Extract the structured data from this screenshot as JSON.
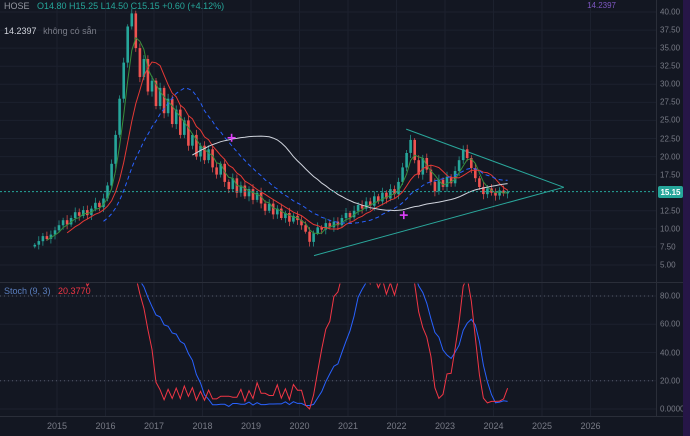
{
  "header": {
    "symbol_text": "HOSE",
    "ohlc": "O14.80  H15.25  L14.50  C15.15  +0.60 (+4.12%)",
    "alert_value": "14.2397",
    "alert_status": "không có sẵn",
    "top_right_label": "14.2397"
  },
  "oscillator_legend": {
    "label": "Stoch (9, 3)",
    "value": "20.3770"
  },
  "colors": {
    "background": "#131722",
    "grid": "#1c212e",
    "up": "#26a69a",
    "down": "#ef5350",
    "axis_text": "#787b86",
    "panel_border": "#2a2e39",
    "strip": "#261647",
    "magenta": "#e040fb",
    "triangle": "#2aa79b",
    "price_line": "#26a69a",
    "osc_guide": "#555b6b"
  },
  "price_axis": {
    "badge": "15.15",
    "labels": [
      {
        "text": "40.00",
        "price": 40.0
      },
      {
        "text": "37.50",
        "price": 37.5
      },
      {
        "text": "35.00",
        "price": 35.0
      },
      {
        "text": "32.50",
        "price": 32.5
      },
      {
        "text": "30.00",
        "price": 30.0
      },
      {
        "text": "27.50",
        "price": 27.5
      },
      {
        "text": "25.00",
        "price": 25.0
      },
      {
        "text": "22.50",
        "price": 22.5
      },
      {
        "text": "20.00",
        "price": 20.0
      },
      {
        "text": "17.50",
        "price": 17.5
      },
      {
        "text": "12.50",
        "price": 12.5
      },
      {
        "text": "10.00",
        "price": 10.0
      },
      {
        "text": "7.50",
        "price": 7.5
      },
      {
        "text": "5.00",
        "price": 5.0
      }
    ]
  },
  "osc_axis": {
    "labels": [
      {
        "text": "80.00",
        "value": 80
      },
      {
        "text": "60.00",
        "value": 60
      },
      {
        "text": "40.00",
        "value": 40
      },
      {
        "text": "20.00",
        "value": 20
      },
      {
        "text": "0.0000",
        "value": 0
      }
    ]
  },
  "time_axis": {
    "labels": [
      {
        "text": "2015",
        "year": 2015
      },
      {
        "text": "2016",
        "year": 2016
      },
      {
        "text": "2017",
        "year": 2017
      },
      {
        "text": "2018",
        "year": 2018
      },
      {
        "text": "2019",
        "year": 2019
      },
      {
        "text": "2020",
        "year": 2020
      },
      {
        "text": "2021",
        "year": 2021
      },
      {
        "text": "2022",
        "year": 2022
      },
      {
        "text": "2023",
        "year": 2023
      },
      {
        "text": "2024",
        "year": 2024
      },
      {
        "text": "2025",
        "year": 2025
      },
      {
        "text": "2026",
        "year": 2026
      }
    ]
  },
  "chart_data": {
    "type": "candlestick",
    "title": "HOSE stock weekly chart with symmetrical triangle and stochastic oscillator",
    "x_start_year": 2014.5,
    "interval_months": 1,
    "main_ylim": [
      5,
      40
    ],
    "last_price": 15.15,
    "closes": [
      7.8,
      8.3,
      9.0,
      8.6,
      9.2,
      9.8,
      10.5,
      11.2,
      10.6,
      11.5,
      12.3,
      11.8,
      12.6,
      11.9,
      12.8,
      13.6,
      13.0,
      14.2,
      16.0,
      19.0,
      23.0,
      28.0,
      33.0,
      38.0,
      39.8,
      35.0,
      31.0,
      33.5,
      29.0,
      30.5,
      27.0,
      29.5,
      26.0,
      28.0,
      24.5,
      26.5,
      23.0,
      25.0,
      21.5,
      23.0,
      20.0,
      21.5,
      19.5,
      21.0,
      18.5,
      17.5,
      19.0,
      16.5,
      15.5,
      17.0,
      15.0,
      16.0,
      14.5,
      15.5,
      14.0,
      15.0,
      13.5,
      12.5,
      13.5,
      12.0,
      12.8,
      11.5,
      12.2,
      11.0,
      11.8,
      11.2,
      10.5,
      9.6,
      8.2,
      9.4,
      10.2,
      9.9,
      10.8,
      10.2,
      11.0,
      10.5,
      11.5,
      12.2,
      11.6,
      12.5,
      13.3,
      12.8,
      13.8,
      13.2,
      14.5,
      13.8,
      15.0,
      14.2,
      15.5,
      14.8,
      16.5,
      18.5,
      20.5,
      22.3,
      19.5,
      17.5,
      19.8,
      18.2,
      16.5,
      15.2,
      16.8,
      15.8,
      17.2,
      16.3,
      18.0,
      19.5,
      21.0,
      19.8,
      18.4,
      17.0,
      15.8,
      14.8,
      15.6,
      15.0,
      14.6,
      15.3,
      14.9,
      15.15
    ],
    "moving_averages": [
      {
        "name": "fast-green",
        "window": 4,
        "color": "#388e3c",
        "dash": false
      },
      {
        "name": "medium-red",
        "window": 9,
        "color": "#e53935",
        "dash": false
      },
      {
        "name": "slow-blue",
        "window": 18,
        "color": "#2962ff",
        "dash": true
      },
      {
        "name": "long-white",
        "window": 40,
        "color": "#cfd3dc",
        "dash": false
      }
    ],
    "trendlines": [
      {
        "name": "triangle-lower",
        "x1": 2020.3,
        "y1": 6.3,
        "x2": 2025.45,
        "y2": 15.75
      },
      {
        "name": "triangle-upper",
        "x1": 2022.2,
        "y1": 23.8,
        "x2": 2025.45,
        "y2": 15.75
      }
    ],
    "markers": [
      {
        "x": 2018.6,
        "y": 22.6
      },
      {
        "x": 2022.15,
        "y": 11.9
      }
    ],
    "oscillator": {
      "kind": "stochastic",
      "k_window": 9,
      "k_smooth": 3,
      "d_window": 21,
      "d_smooth": 5,
      "k_color": "#f23645",
      "d_color": "#2962ff",
      "guides": [
        80,
        20
      ],
      "range": [
        0,
        100
      ],
      "last_value": "20.3770"
    }
  }
}
